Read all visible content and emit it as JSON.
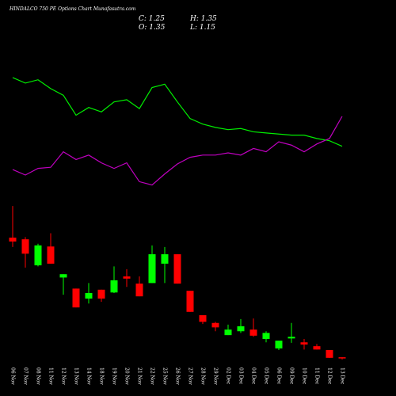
{
  "chart_data": {
    "type": "candlestick",
    "title": "HINDALCO 750 PE Options Chart Munafasutra.com",
    "summary": [
      "C: 1.25",
      "H: 1.35",
      "O: 1.35",
      "L: 1.15"
    ],
    "categories": [
      "06 Nov",
      "07 Nov",
      "08 Nov",
      "11 Nov",
      "12 Nov",
      "13 Nov",
      "14 Nov",
      "18 Nov",
      "19 Nov",
      "20 Nov",
      "21 Nov",
      "22 Nov",
      "25 Nov",
      "26 Nov",
      "27 Nov",
      "28 Nov",
      "29 Nov",
      "02 Dec",
      "03 Dec",
      "04 Dec",
      "05 Dec",
      "06 Dec",
      "09 Dec",
      "10 Dec",
      "11 Dec",
      "12 Dec",
      "13 Dec"
    ],
    "open": [
      12.15,
      12.0,
      9.65,
      11.35,
      8.55,
      7.55,
      6.65,
      7.45,
      7.2,
      8.65,
      8.0,
      8.05,
      9.8,
      10.65,
      7.35,
      5.15,
      4.45,
      3.35,
      3.7,
      3.85,
      3.0,
      2.15,
      3.05,
      2.7,
      2.35,
      2.0,
      1.35
    ],
    "high": [
      15.0,
      12.2,
      11.6,
      12.55,
      8.85,
      7.55,
      8.05,
      7.45,
      9.55,
      9.3,
      8.65,
      11.45,
      11.3,
      10.65,
      7.35,
      5.15,
      4.55,
      4.3,
      4.8,
      4.85,
      3.7,
      2.85,
      4.45,
      3.0,
      2.55,
      2.0,
      1.35
    ],
    "low": [
      11.3,
      9.45,
      9.55,
      9.8,
      7.0,
      5.85,
      6.2,
      6.35,
      7.15,
      7.7,
      6.85,
      8.05,
      8.05,
      8.0,
      5.45,
      4.35,
      3.7,
      3.35,
      3.55,
      3.2,
      2.7,
      2.0,
      2.65,
      2.05,
      2.05,
      1.3,
      1.15
    ],
    "close": [
      11.8,
      10.7,
      11.45,
      9.8,
      8.85,
      5.85,
      7.15,
      6.65,
      8.3,
      8.45,
      6.85,
      10.65,
      10.65,
      8.0,
      5.45,
      4.55,
      4.05,
      3.85,
      4.15,
      3.3,
      3.55,
      2.85,
      3.2,
      2.5,
      2.05,
      1.3,
      1.25
    ],
    "up_color": "#00ff00",
    "down_color": "#ff0000",
    "lines": [
      {
        "color": "#00ee00",
        "values": [
          26.6,
          26.1,
          26.4,
          25.6,
          25.0,
          23.2,
          23.9,
          23.5,
          24.4,
          24.6,
          23.8,
          25.7,
          26.0,
          24.4,
          22.9,
          22.4,
          22.1,
          21.9,
          22.0,
          21.7,
          21.6,
          21.5,
          21.4,
          21.4,
          21.1,
          20.9,
          20.4
        ]
      },
      {
        "color": "#c000c0",
        "values": [
          18.3,
          17.8,
          18.4,
          18.5,
          19.9,
          19.2,
          19.6,
          18.9,
          18.4,
          18.9,
          17.2,
          16.9,
          17.9,
          18.8,
          19.4,
          19.6,
          19.6,
          19.8,
          19.6,
          20.2,
          19.9,
          20.8,
          20.5,
          19.9,
          20.6,
          21.1,
          23.1
        ]
      }
    ],
    "ylim": [
      0,
      33.6
    ]
  }
}
